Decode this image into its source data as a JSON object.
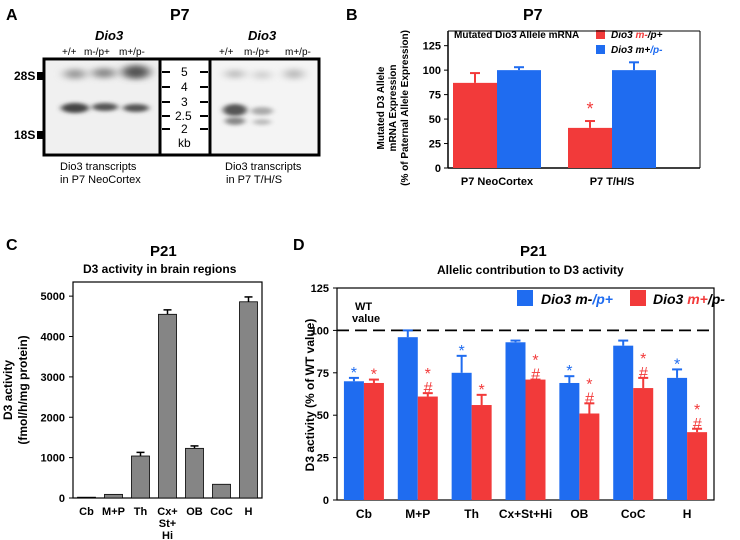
{
  "panels": {
    "A": {
      "letter": "A",
      "title": "P7",
      "gene_left": "Dio3",
      "gene_right": "Dio3",
      "lane_labels_left": [
        "+/+",
        "m-/p+",
        "m+/p-"
      ],
      "lane_labels_right": [
        "+/+",
        "m-/p+",
        "m+/p-"
      ],
      "marker_28s": "28S",
      "marker_18s": "18S",
      "ladder": [
        "5",
        "4",
        "3",
        "2.5",
        "2",
        "kb"
      ],
      "caption_left": [
        "Dio3 transcripts",
        "in P7 NeoCortex"
      ],
      "caption_right": [
        "Dio3 transcripts",
        "in P7 T/H/S"
      ]
    },
    "B": {
      "letter": "B",
      "title": "P7"
    },
    "C": {
      "letter": "C",
      "title": "P21"
    },
    "D": {
      "letter": "D",
      "title": "P21",
      "wt_line_label": [
        "WT",
        "value"
      ]
    }
  },
  "colors": {
    "red": "#f23a3a",
    "blue": "#1f6cf0",
    "gray": "#858585"
  },
  "chart_data": [
    {
      "panel": "B",
      "type": "bar",
      "subtitle": "Mutated Dio3 Allele mRNA",
      "ylabel": [
        "Mutated D3 Allele",
        "mRNA Expression",
        "(% of Paternal Allele Expression)"
      ],
      "categories": [
        "P7 NeoCortex",
        "P7 T/H/S"
      ],
      "ylim": [
        0,
        140
      ],
      "yticks": [
        0,
        25,
        50,
        75,
        100,
        125
      ],
      "series": [
        {
          "name": "Dio3 m-/p+",
          "color": "red",
          "values": [
            87,
            41
          ],
          "errors": [
            10,
            7
          ]
        },
        {
          "name": "Dio3 m+/p-",
          "color": "blue",
          "values": [
            100,
            100
          ],
          "errors": [
            3,
            8
          ]
        }
      ],
      "annotations": [
        {
          "text": "*",
          "series": 0,
          "index": 1,
          "color": "red"
        }
      ]
    },
    {
      "panel": "C",
      "type": "bar",
      "subtitle": "D3 activity in brain regions",
      "ylabel": [
        "D3 activity",
        "(fmol/h/mg protein)"
      ],
      "categories": [
        "Cb",
        "M+P",
        "Th",
        "Cx+ St+ Hi",
        "OB",
        "CoC",
        "H"
      ],
      "ylim": [
        0,
        5350
      ],
      "yticks": [
        0,
        1000,
        2000,
        3000,
        4000,
        5000
      ],
      "values": [
        20,
        90,
        1040,
        4550,
        1230,
        340,
        4860
      ],
      "errors": [
        0,
        0,
        90,
        110,
        60,
        0,
        120
      ]
    },
    {
      "panel": "D",
      "type": "bar",
      "subtitle": "Allelic contribution to D3 activity",
      "ylabel": "D3 activity  (% of WT value)",
      "categories": [
        "Cb",
        "M+P",
        "Th",
        "Cx+St+Hi",
        "OB",
        "CoC",
        "H"
      ],
      "ylim": [
        0,
        125
      ],
      "yticks": [
        0,
        25,
        50,
        75,
        100,
        125
      ],
      "reference_line": 100,
      "series": [
        {
          "name": "Dio3 m-/p+",
          "color": "blue",
          "values": [
            70,
            96,
            75,
            93,
            69,
            91,
            72
          ],
          "errors": [
            2,
            4,
            10,
            1,
            4,
            3,
            5
          ]
        },
        {
          "name": "Dio3 m+/p-",
          "color": "red",
          "values": [
            69,
            61,
            56,
            71,
            51,
            66,
            40
          ],
          "errors": [
            2,
            2,
            6,
            0,
            6,
            6,
            2
          ]
        }
      ],
      "annotations": [
        {
          "series": 0,
          "index": 0,
          "marks": [
            "*"
          ]
        },
        {
          "series": 1,
          "index": 0,
          "marks": [
            "*"
          ]
        },
        {
          "series": 1,
          "index": 1,
          "marks": [
            "*",
            "#"
          ]
        },
        {
          "series": 0,
          "index": 2,
          "marks": [
            "*"
          ]
        },
        {
          "series": 1,
          "index": 2,
          "marks": [
            "*"
          ]
        },
        {
          "series": 1,
          "index": 3,
          "marks": [
            "*",
            "#"
          ]
        },
        {
          "series": 0,
          "index": 4,
          "marks": [
            "*"
          ]
        },
        {
          "series": 1,
          "index": 4,
          "marks": [
            "*",
            "#"
          ]
        },
        {
          "series": 1,
          "index": 5,
          "marks": [
            "*",
            "#"
          ]
        },
        {
          "series": 0,
          "index": 6,
          "marks": [
            "*"
          ]
        },
        {
          "series": 1,
          "index": 6,
          "marks": [
            "*",
            "#"
          ]
        }
      ]
    }
  ]
}
